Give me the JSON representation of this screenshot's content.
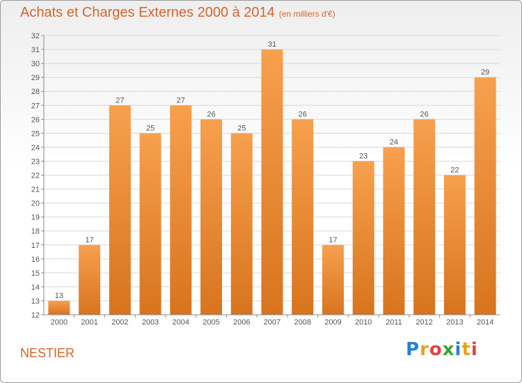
{
  "header": {
    "title": "Achats et Charges Externes 2000 à 2014",
    "unit": "(en milliers d'€)"
  },
  "footer": {
    "place": "NESTIER",
    "logo": "Proxiti"
  },
  "colors": {
    "title": "#d4652a",
    "bar_top": "#f7a04e",
    "bar_bottom": "#d8741e",
    "grid": "#d8d8d8",
    "axis": "#888888"
  },
  "chart_data": {
    "type": "bar",
    "categories": [
      "2000",
      "2001",
      "2002",
      "2003",
      "2004",
      "2005",
      "2006",
      "2007",
      "2008",
      "2009",
      "2010",
      "2011",
      "2012",
      "2013",
      "2014"
    ],
    "values": [
      13,
      17,
      27,
      25,
      27,
      26,
      25,
      31,
      26,
      17,
      23,
      24,
      26,
      22,
      29
    ],
    "title": "Achats et Charges Externes 2000 à 2014",
    "subtitle": "(en milliers d'€)",
    "xlabel": "",
    "ylabel": "",
    "ylim": [
      12,
      32
    ],
    "yticks": [
      12,
      13,
      14,
      15,
      16,
      17,
      18,
      19,
      20,
      21,
      22,
      23,
      24,
      25,
      26,
      27,
      28,
      29,
      30,
      31,
      32
    ],
    "grid": true,
    "legend": "none"
  }
}
